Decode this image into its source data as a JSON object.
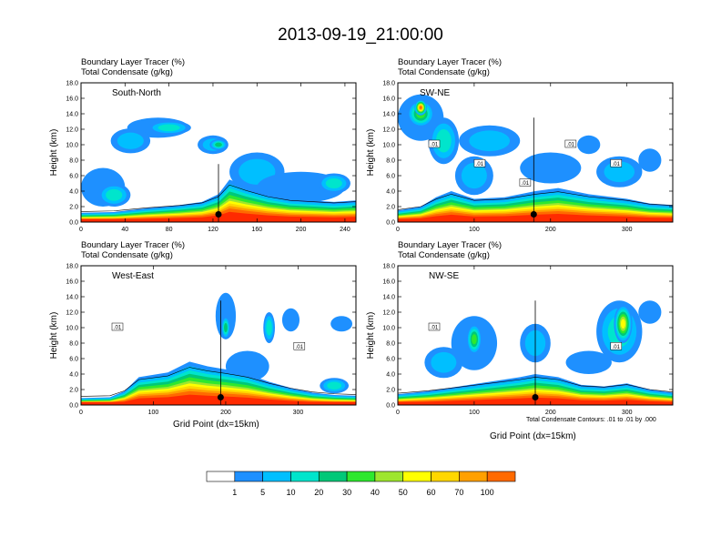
{
  "title": "2013-09-19_21:00:00",
  "panel_header": {
    "line1": "Boundary Layer Tracer   (%)",
    "line2": "Total Condensate   (g/kg)"
  },
  "ylabel": "Height (km)",
  "xlabel": "Grid Point (dx=15km)",
  "contour_note": "Total Condensate Contours: .01 to .01 by .000",
  "contour_label": ".01",
  "colors": {
    "levels": [
      "#ffffff",
      "#1e90ff",
      "#00bfff",
      "#00e5cc",
      "#00c878",
      "#2ee82e",
      "#9ee62e",
      "#ffff00",
      "#ffd700",
      "#ffa000",
      "#ff6a00",
      "#ff2a00"
    ],
    "contour": "#000000"
  },
  "colorbar": {
    "labels": [
      "1",
      "5",
      "10",
      "20",
      "30",
      "40",
      "50",
      "60",
      "70",
      "100"
    ]
  },
  "chart_data": [
    {
      "type": "heatmap",
      "name": "South-North",
      "xlim": [
        0,
        250
      ],
      "ylim": [
        0,
        18
      ],
      "xticks": [
        0,
        40,
        80,
        120,
        160,
        200,
        240
      ],
      "yticks": [
        "0.0",
        "2.0",
        "4.0",
        "6.0",
        "8.0",
        "10.0",
        "12.0",
        "14.0",
        "16.0",
        "18.0"
      ],
      "marker_x": 125,
      "bl_top_km": [
        [
          0,
          1.2
        ],
        [
          30,
          1.3
        ],
        [
          60,
          1.8
        ],
        [
          90,
          2.2
        ],
        [
          110,
          2.6
        ],
        [
          125,
          3.6
        ],
        [
          135,
          5.5
        ],
        [
          150,
          4.6
        ],
        [
          170,
          3.6
        ],
        [
          190,
          3.0
        ],
        [
          210,
          2.8
        ],
        [
          230,
          2.6
        ],
        [
          250,
          2.8
        ]
      ],
      "contour_labels": []
    },
    {
      "type": "heatmap",
      "name": "SW-NE",
      "xlim": [
        0,
        360
      ],
      "ylim": [
        0,
        18
      ],
      "xticks": [
        0,
        100,
        200,
        300
      ],
      "yticks": [
        "0.0",
        "2.0",
        "4.0",
        "6.0",
        "8.0",
        "10.0",
        "12.0",
        "14.0",
        "16.0",
        "18.0"
      ],
      "marker_x": 178,
      "bl_top_km": [
        [
          0,
          1.5
        ],
        [
          30,
          2.0
        ],
        [
          50,
          3.2
        ],
        [
          70,
          4.0
        ],
        [
          100,
          3.0
        ],
        [
          140,
          3.2
        ],
        [
          180,
          4.0
        ],
        [
          210,
          4.4
        ],
        [
          250,
          3.6
        ],
        [
          300,
          3.0
        ],
        [
          330,
          2.4
        ],
        [
          360,
          2.2
        ]
      ],
      "contour_labels": [
        ".01",
        ".01",
        ".01",
        ".01",
        ".01"
      ]
    },
    {
      "type": "heatmap",
      "name": "West-East",
      "xlim": [
        0,
        380
      ],
      "ylim": [
        0,
        18
      ],
      "xticks": [
        0,
        100,
        200,
        300
      ],
      "yticks": [
        "0.0",
        "2.0",
        "4.0",
        "6.0",
        "8.0",
        "10.0",
        "12.0",
        "14.0",
        "16.0",
        "18.0"
      ],
      "marker_x": 193,
      "bl_top_km": [
        [
          0,
          0.9
        ],
        [
          40,
          1.0
        ],
        [
          60,
          1.8
        ],
        [
          80,
          3.6
        ],
        [
          120,
          4.2
        ],
        [
          150,
          5.6
        ],
        [
          175,
          5.0
        ],
        [
          200,
          4.6
        ],
        [
          230,
          4.0
        ],
        [
          260,
          3.0
        ],
        [
          290,
          2.2
        ],
        [
          320,
          1.6
        ],
        [
          350,
          1.3
        ],
        [
          380,
          1.2
        ]
      ],
      "contour_labels": [
        ".01",
        ".01"
      ]
    },
    {
      "type": "heatmap",
      "name": "NW-SE",
      "xlim": [
        0,
        360
      ],
      "ylim": [
        0,
        18
      ],
      "xticks": [
        0,
        100,
        200,
        300
      ],
      "yticks": [
        "0.0",
        "2.0",
        "4.0",
        "6.0",
        "8.0",
        "10.0",
        "12.0",
        "14.0",
        "16.0",
        "18.0"
      ],
      "marker_x": 180,
      "bl_top_km": [
        [
          0,
          1.4
        ],
        [
          40,
          1.8
        ],
        [
          80,
          2.4
        ],
        [
          120,
          3.0
        ],
        [
          160,
          3.6
        ],
        [
          180,
          4.0
        ],
        [
          210,
          3.6
        ],
        [
          240,
          2.6
        ],
        [
          270,
          2.4
        ],
        [
          300,
          2.8
        ],
        [
          330,
          2.0
        ],
        [
          360,
          1.6
        ]
      ],
      "contour_labels": [
        ".01",
        ".01"
      ]
    }
  ]
}
